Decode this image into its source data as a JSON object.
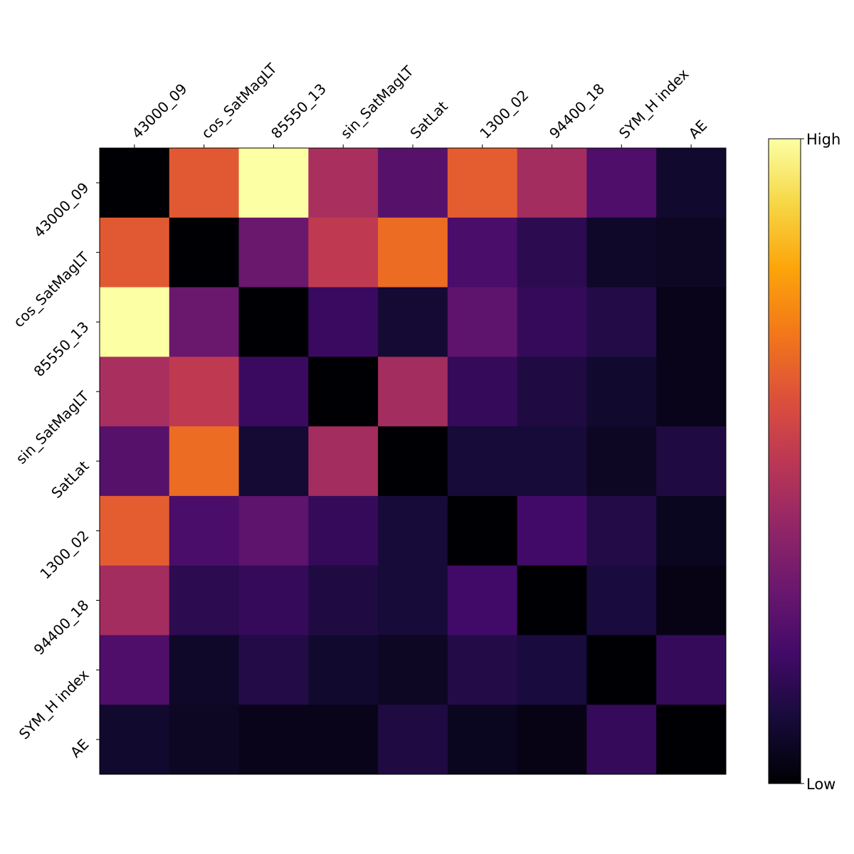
{
  "chart_data": {
    "type": "heatmap",
    "title": "",
    "xlabel": "",
    "ylabel": "",
    "colormap": "inferno",
    "x_axis_position": "top",
    "grid": false,
    "legend": "colorbar-right",
    "categories": [
      "43000_09",
      "cos_SatMagLT",
      "85550_13",
      "sin_SatMagLT",
      "SatLat",
      "1300_02",
      "94400_18",
      "SYM_H index",
      "AE"
    ],
    "colorbar": {
      "low_label": "Low",
      "high_label": "High",
      "range": [
        0,
        1
      ]
    },
    "values": [
      [
        0.0,
        0.62,
        1.0,
        0.45,
        0.25,
        0.63,
        0.44,
        0.23,
        0.08
      ],
      [
        0.62,
        0.0,
        0.3,
        0.51,
        0.67,
        0.22,
        0.15,
        0.07,
        0.06
      ],
      [
        1.0,
        0.3,
        0.0,
        0.18,
        0.09,
        0.27,
        0.17,
        0.13,
        0.04
      ],
      [
        0.45,
        0.51,
        0.18,
        0.0,
        0.44,
        0.17,
        0.12,
        0.08,
        0.04
      ],
      [
        0.25,
        0.67,
        0.09,
        0.44,
        0.0,
        0.1,
        0.1,
        0.06,
        0.12
      ],
      [
        0.63,
        0.22,
        0.27,
        0.17,
        0.1,
        0.0,
        0.2,
        0.13,
        0.05
      ],
      [
        0.44,
        0.15,
        0.17,
        0.12,
        0.1,
        0.2,
        0.0,
        0.11,
        0.03
      ],
      [
        0.23,
        0.07,
        0.13,
        0.08,
        0.06,
        0.13,
        0.11,
        0.0,
        0.17
      ],
      [
        0.08,
        0.06,
        0.04,
        0.04,
        0.12,
        0.05,
        0.03,
        0.17,
        0.0
      ]
    ]
  }
}
